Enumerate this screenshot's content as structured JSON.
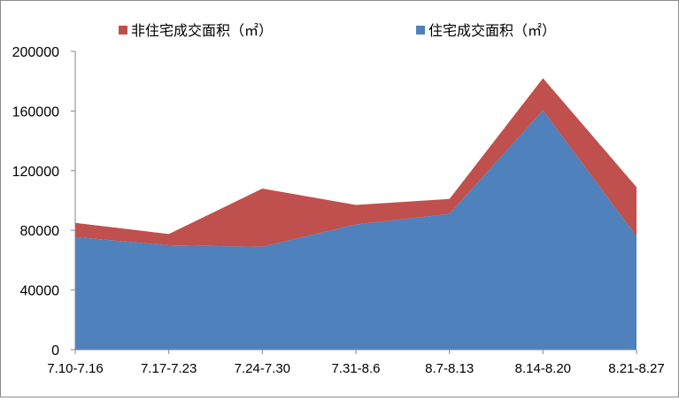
{
  "chart_data": {
    "type": "area",
    "stacked": true,
    "categories": [
      "7.10-7.16",
      "7.17-7.23",
      "7.24-7.30",
      "7.31-8.6",
      "8.7-8.13",
      "8.14-8.20",
      "8.21-8.27"
    ],
    "series": [
      {
        "name": "住宅成交面积（㎡）",
        "color": "#4f81bd",
        "values": [
          75500,
          70000,
          69000,
          84000,
          91000,
          160500,
          76000
        ]
      },
      {
        "name": "非住宅成交面积（㎡）",
        "color": "#c0504d",
        "values": [
          9500,
          7500,
          39000,
          13000,
          10000,
          21500,
          33000
        ]
      }
    ],
    "ylim": [
      0,
      200000
    ],
    "yticks": [
      0,
      40000,
      80000,
      120000,
      160000,
      200000
    ],
    "legend_position": "top",
    "grid": false
  }
}
